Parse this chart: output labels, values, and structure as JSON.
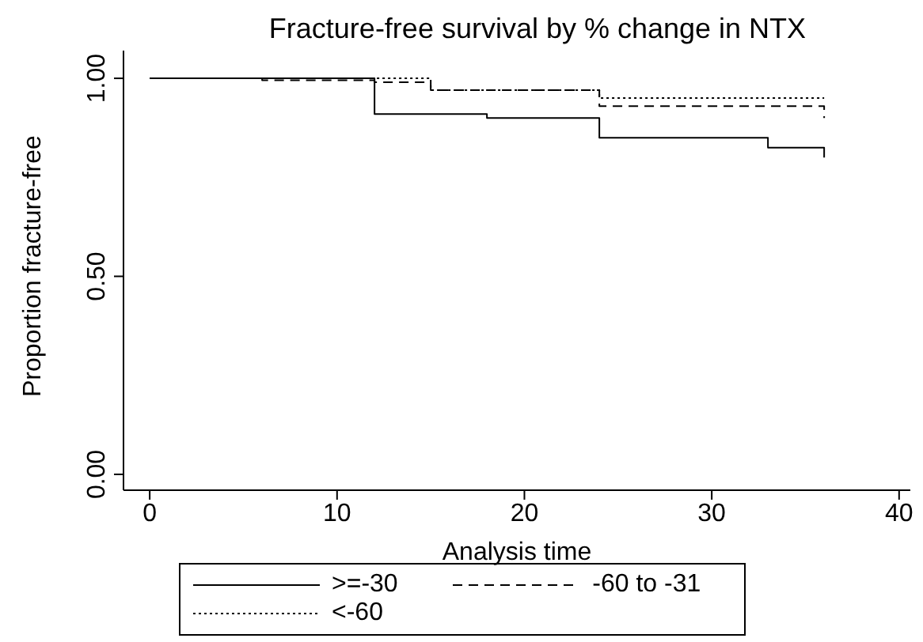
{
  "chart_data": {
    "type": "step",
    "title": "Fracture-free survival by % change in NTX",
    "xlabel": "Analysis time",
    "ylabel": "Proportion fracture-free",
    "xlim": [
      -1.4,
      40.6
    ],
    "xticks": [
      0,
      10,
      20,
      30,
      40
    ],
    "ylim": [
      -0.04,
      1.07
    ],
    "yticks": [
      {
        "value": 0,
        "label": "0.00"
      },
      {
        "value": 0.5,
        "label": "0.50"
      },
      {
        "value": 1,
        "label": "1.00"
      }
    ],
    "grid": false,
    "legend": "bottom",
    "marker": "none",
    "series": [
      {
        "name": ">=-30",
        "color": "#000000",
        "line_style": "solid",
        "x": [
          0,
          12,
          18,
          24,
          33,
          36,
          36
        ],
        "values": [
          1,
          0.91,
          0.9,
          0.85,
          0.825,
          0.825,
          0.8
        ]
      },
      {
        "name": "-60 to -31",
        "color": "#000000",
        "line_style": "dashed",
        "x": [
          0,
          6,
          12,
          15,
          24,
          36,
          36
        ],
        "values": [
          1,
          0.995,
          0.99,
          0.97,
          0.93,
          0.93,
          0.9
        ]
      },
      {
        "name": "<-60",
        "color": "#000000",
        "line_style": "dotted",
        "x": [
          0,
          15,
          24,
          36
        ],
        "values": [
          1,
          0.97,
          0.95,
          0.95
        ]
      }
    ]
  }
}
